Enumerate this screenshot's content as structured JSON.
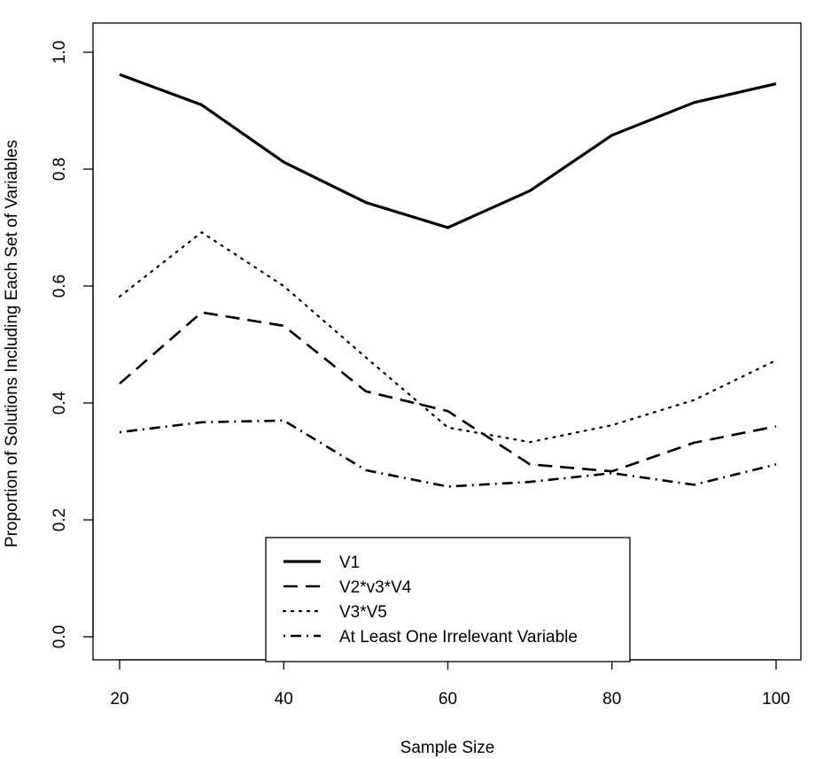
{
  "chart_data": {
    "type": "line",
    "title": "",
    "xlabel": "Sample Size",
    "ylabel": "Proportion of Solutions Including Each Set of Variables",
    "x": [
      20,
      30,
      40,
      50,
      60,
      70,
      80,
      90,
      100
    ],
    "xlim": [
      20,
      100
    ],
    "ylim": [
      0,
      1
    ],
    "xticks": [
      "20",
      "40",
      "60",
      "80",
      "100"
    ],
    "yticks": [
      "0.0",
      "0.2",
      "0.4",
      "0.6",
      "0.8",
      "1.0"
    ],
    "grid": false,
    "legend_position": "bottom-center",
    "series": [
      {
        "name": "V1",
        "line_style": "solid",
        "values": [
          0.962,
          0.91,
          0.812,
          0.743,
          0.7,
          0.763,
          0.858,
          0.914,
          0.946
        ]
      },
      {
        "name": "V2*v3*V4",
        "line_style": "dashed",
        "values": [
          0.433,
          0.555,
          0.532,
          0.42,
          0.386,
          0.295,
          0.283,
          0.332,
          0.36
        ]
      },
      {
        "name": "V3*V5",
        "line_style": "dotted",
        "values": [
          0.582,
          0.692,
          0.6,
          0.478,
          0.358,
          0.333,
          0.362,
          0.405,
          0.473
        ]
      },
      {
        "name": "At Least One Irrelevant Variable",
        "line_style": "dotdash",
        "values": [
          0.35,
          0.367,
          0.37,
          0.285,
          0.257,
          0.265,
          0.28,
          0.26,
          0.295
        ]
      }
    ],
    "line_color": "#000000"
  }
}
